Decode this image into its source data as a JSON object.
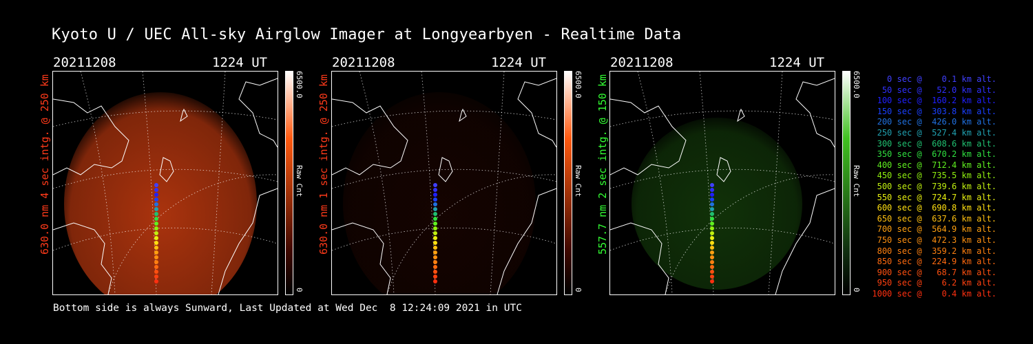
{
  "title": "Kyoto U / UEC All-sky Airglow Imager at Longyearbyen - Realtime Data",
  "panels": [
    {
      "date": "20211208",
      "time": "1224 UT",
      "ylabel": "630.0 nm 4 sec intg. @ 250 km",
      "ylabel_color": "#ff3a1a",
      "colorbar": {
        "max": "6500.0",
        "min": "0",
        "unit": "Raw Cnt"
      },
      "image_tint": "#c83c10",
      "intensity": "high"
    },
    {
      "date": "20211208",
      "time": "1224 UT",
      "ylabel": "630.0 nm 1 sec intg. @ 250 km",
      "ylabel_color": "#ff3a1a",
      "colorbar": {
        "max": "6500.0",
        "min": "0",
        "unit": "Raw Cnt"
      },
      "image_tint": "#3a0a02",
      "intensity": "low"
    },
    {
      "date": "20211208",
      "time": "1224 UT",
      "ylabel": "557.7 nm 2 sec intg. @ 150 km",
      "ylabel_color": "#33ff33",
      "colorbar": {
        "max": "6500.0",
        "min": "0",
        "unit": "Raw Cnt"
      },
      "image_tint": "#1e5a10",
      "intensity": "medium"
    }
  ],
  "footer": "Bottom side is always Sunward, Last Updated at Wed Dec  8 12:24:09 2021 in UTC",
  "legend": [
    {
      "text": "   0 sec @    0.1 km alt.",
      "color": "#4040ff"
    },
    {
      "text": "  50 sec @   52.0 km alt.",
      "color": "#3030ff"
    },
    {
      "text": " 100 sec @  160.2 km alt.",
      "color": "#2020ff"
    },
    {
      "text": " 150 sec @  303.8 km alt.",
      "color": "#1a40ff"
    },
    {
      "text": " 200 sec @  426.0 km alt.",
      "color": "#2070e0"
    },
    {
      "text": " 250 sec @  527.4 km alt.",
      "color": "#20a0b0"
    },
    {
      "text": " 300 sec @  608.6 km alt.",
      "color": "#20c070"
    },
    {
      "text": " 350 sec @  670.2 km alt.",
      "color": "#30e040"
    },
    {
      "text": " 400 sec @  712.4 km alt.",
      "color": "#60f020"
    },
    {
      "text": " 450 sec @  735.5 km alt.",
      "color": "#90f010"
    },
    {
      "text": " 500 sec @  739.6 km alt.",
      "color": "#c0f010"
    },
    {
      "text": " 550 sec @  724.7 km alt.",
      "color": "#e8f010"
    },
    {
      "text": " 600 sec @  690.8 km alt.",
      "color": "#ffe010"
    },
    {
      "text": " 650 sec @  637.6 km alt.",
      "color": "#ffc010"
    },
    {
      "text": " 700 sec @  564.9 km alt.",
      "color": "#ffa010"
    },
    {
      "text": " 750 sec @  472.3 km alt.",
      "color": "#ff9010"
    },
    {
      "text": " 800 sec @  359.2 km alt.",
      "color": "#ff8010"
    },
    {
      "text": " 850 sec @  224.9 km alt.",
      "color": "#ff6a10"
    },
    {
      "text": " 900 sec @   68.7 km alt.",
      "color": "#ff5010"
    },
    {
      "text": " 950 sec @    6.2 km alt.",
      "color": "#ff4010"
    },
    {
      "text": "1000 sec @    0.4 km alt.",
      "color": "#ff3010"
    }
  ]
}
